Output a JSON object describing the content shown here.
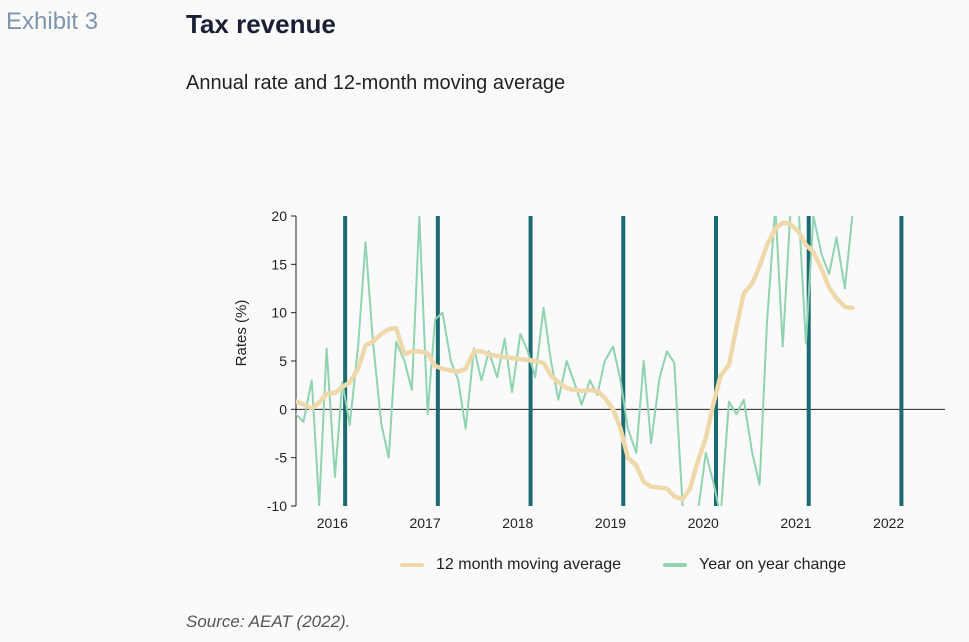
{
  "header": {
    "exhibit": "Exhibit 3",
    "title": "Tax revenue",
    "subtitle": "Annual rate and 12-month moving average"
  },
  "source": "Source: AEAT (2022).",
  "chart_data": {
    "type": "line",
    "ylabel": "Rates (%)",
    "xlabel": "",
    "ylim": [
      -10,
      20
    ],
    "yticks": [
      -10,
      -5,
      0,
      5,
      10,
      15,
      20
    ],
    "year_labels": [
      "2016",
      "2017",
      "2018",
      "2019",
      "2020",
      "2021",
      "2022"
    ],
    "year_dividers": [
      2017,
      2018,
      2019,
      2020,
      2021,
      2022,
      2023
    ],
    "x_range": [
      2016.0,
      2023.0
    ],
    "grid": false,
    "legend_position": "bottom",
    "colors": {
      "moving_average": "#efd9ab",
      "yoy": "#8fd3b1",
      "divider": "#1c6a72",
      "zero_line": "#222222"
    },
    "series": [
      {
        "name": "12 month moving average",
        "key": "ma",
        "x": [
          2016.0,
          2016.08,
          2016.17,
          2016.25,
          2016.33,
          2016.42,
          2016.5,
          2016.58,
          2016.67,
          2016.75,
          2016.83,
          2016.92,
          2017.0,
          2017.08,
          2017.17,
          2017.25,
          2017.33,
          2017.42,
          2017.5,
          2017.58,
          2017.67,
          2017.75,
          2017.83,
          2017.92,
          2018.0,
          2018.08,
          2018.17,
          2018.25,
          2018.33,
          2018.42,
          2018.5,
          2018.58,
          2018.67,
          2018.75,
          2018.83,
          2018.92,
          2019.0,
          2019.08,
          2019.17,
          2019.25,
          2019.33,
          2019.42,
          2019.5,
          2019.58,
          2019.67,
          2019.75,
          2019.83,
          2019.92,
          2020.0,
          2020.08,
          2020.17,
          2020.25,
          2020.33,
          2020.42,
          2020.5,
          2020.58,
          2020.67,
          2020.75,
          2020.83,
          2020.92,
          2021.0,
          2021.08,
          2021.17,
          2021.25,
          2021.33,
          2021.42,
          2021.5,
          2021.58,
          2021.67,
          2021.75,
          2021.83,
          2021.92,
          2022.0
        ],
        "values": [
          0.8,
          0.5,
          0.1,
          0.7,
          1.6,
          1.7,
          2.3,
          2.8,
          4.2,
          6.6,
          7.0,
          7.8,
          8.3,
          8.4,
          5.7,
          6.0,
          6.0,
          5.8,
          4.5,
          4.2,
          4.0,
          3.9,
          4.2,
          6.0,
          6.0,
          5.7,
          5.5,
          5.4,
          5.3,
          5.2,
          5.1,
          5.0,
          4.8,
          3.5,
          2.8,
          2.2,
          2.0,
          1.9,
          2.0,
          1.9,
          1.2,
          0.0,
          -2.0,
          -5.0,
          -5.8,
          -7.5,
          -8.0,
          -8.1,
          -8.2,
          -9.0,
          -9.3,
          -8.2,
          -5.5,
          -3.0,
          0.5,
          3.5,
          4.6,
          8.5,
          12.0,
          13.0,
          14.8,
          17.0,
          18.7,
          19.3,
          19.2,
          18.4,
          17.0,
          16.3,
          14.5,
          12.6,
          11.5,
          10.6,
          10.5
        ]
      },
      {
        "name": "Year on year change",
        "key": "yoy",
        "x": [
          2016.0,
          2016.08,
          2016.17,
          2016.25,
          2016.33,
          2016.42,
          2016.5,
          2016.58,
          2016.67,
          2016.75,
          2016.83,
          2016.92,
          2017.0,
          2017.08,
          2017.17,
          2017.25,
          2017.33,
          2017.42,
          2017.5,
          2017.58,
          2017.67,
          2017.75,
          2017.83,
          2017.92,
          2018.0,
          2018.08,
          2018.17,
          2018.25,
          2018.33,
          2018.42,
          2018.5,
          2018.58,
          2018.67,
          2018.75,
          2018.83,
          2018.92,
          2019.0,
          2019.08,
          2019.17,
          2019.25,
          2019.33,
          2019.42,
          2019.5,
          2019.58,
          2019.67,
          2019.75,
          2019.83,
          2019.92,
          2020.0,
          2020.08,
          2020.17,
          2020.25,
          2020.33,
          2020.42,
          2020.5,
          2020.58,
          2020.67,
          2020.75,
          2020.83,
          2020.92,
          2021.0,
          2021.08,
          2021.17,
          2021.25,
          2021.33,
          2021.42,
          2021.5,
          2021.58,
          2021.67,
          2021.75,
          2021.83,
          2021.92,
          2022.0
        ],
        "values": [
          -0.5,
          -1.3,
          3.0,
          -10.0,
          6.3,
          -7.0,
          2.8,
          -1.6,
          6.5,
          17.3,
          7.0,
          -1.5,
          -5.0,
          7.0,
          5.0,
          2.0,
          20.0,
          -0.5,
          9.3,
          10.0,
          5.0,
          3.0,
          -2.0,
          6.3,
          3.0,
          6.0,
          3.3,
          7.3,
          1.8,
          7.8,
          6.0,
          3.3,
          10.5,
          5.0,
          1.0,
          5.0,
          2.8,
          0.5,
          3.0,
          1.5,
          5.0,
          6.5,
          3.0,
          -2.0,
          -4.5,
          5.0,
          -3.5,
          3.2,
          6.0,
          4.8,
          -10.0,
          -10.5,
          -11.0,
          -4.5,
          -7.5,
          -11.0,
          0.8,
          -0.5,
          1.0,
          -4.5,
          -7.8,
          9.0,
          21.0,
          6.5,
          20.0,
          21.0,
          6.8,
          20.0,
          16.0,
          14.0,
          17.8,
          12.5,
          20.0
        ]
      }
    ]
  }
}
